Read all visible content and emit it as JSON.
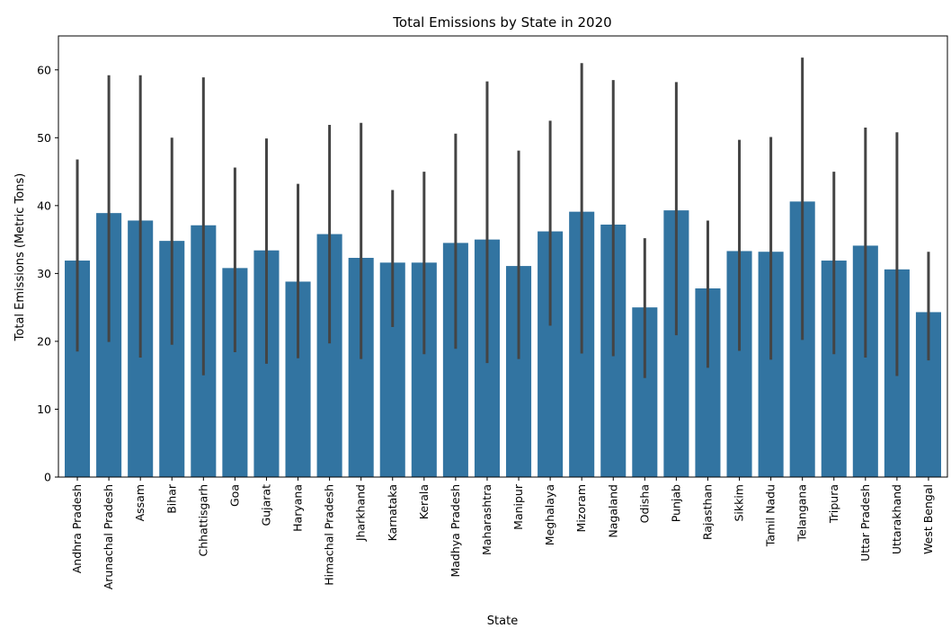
{
  "chart_data": {
    "type": "bar",
    "title": "Total Emissions by State in 2020",
    "xlabel": "State",
    "ylabel": "Total Emissions (Metric Tons)",
    "ylim": [
      0,
      65
    ],
    "yticks": [
      0,
      10,
      20,
      30,
      40,
      50,
      60
    ],
    "grid": false,
    "bar_color": "#3274a1",
    "errorbar_color": "#444444",
    "categories": [
      "Andhra Pradesh",
      "Arunachal Pradesh",
      "Assam",
      "Bihar",
      "Chhattisgarh",
      "Goa",
      "Gujarat",
      "Haryana",
      "Himachal Pradesh",
      "Jharkhand",
      "Karnataka",
      "Kerala",
      "Madhya Pradesh",
      "Maharashtra",
      "Manipur",
      "Meghalaya",
      "Mizoram",
      "Nagaland",
      "Odisha",
      "Punjab",
      "Rajasthan",
      "Sikkim",
      "Tamil Nadu",
      "Telangana",
      "Tripura",
      "Uttar Pradesh",
      "Uttarakhand",
      "West Bengal"
    ],
    "values": [
      31.9,
      38.9,
      37.8,
      34.8,
      37.1,
      30.8,
      33.4,
      28.8,
      35.8,
      32.3,
      31.6,
      31.6,
      34.5,
      35.0,
      31.1,
      36.2,
      39.1,
      37.2,
      25.0,
      39.3,
      27.8,
      33.3,
      33.2,
      40.6,
      31.9,
      34.1,
      30.6,
      24.3
    ],
    "error_low": [
      18.5,
      19.9,
      17.6,
      19.5,
      15.0,
      18.4,
      16.7,
      17.5,
      19.7,
      17.4,
      22.1,
      18.1,
      18.9,
      16.8,
      17.4,
      22.3,
      18.2,
      17.8,
      14.6,
      20.9,
      16.1,
      18.6,
      17.3,
      20.2,
      18.1,
      17.6,
      14.9,
      17.2
    ],
    "error_high": [
      46.8,
      59.2,
      59.2,
      50.0,
      58.9,
      45.6,
      49.9,
      43.2,
      51.9,
      52.2,
      42.3,
      45.0,
      50.6,
      58.3,
      48.1,
      52.5,
      61.0,
      58.5,
      35.2,
      58.2,
      37.8,
      49.7,
      50.1,
      61.8,
      45.0,
      51.5,
      50.8,
      33.2
    ]
  }
}
